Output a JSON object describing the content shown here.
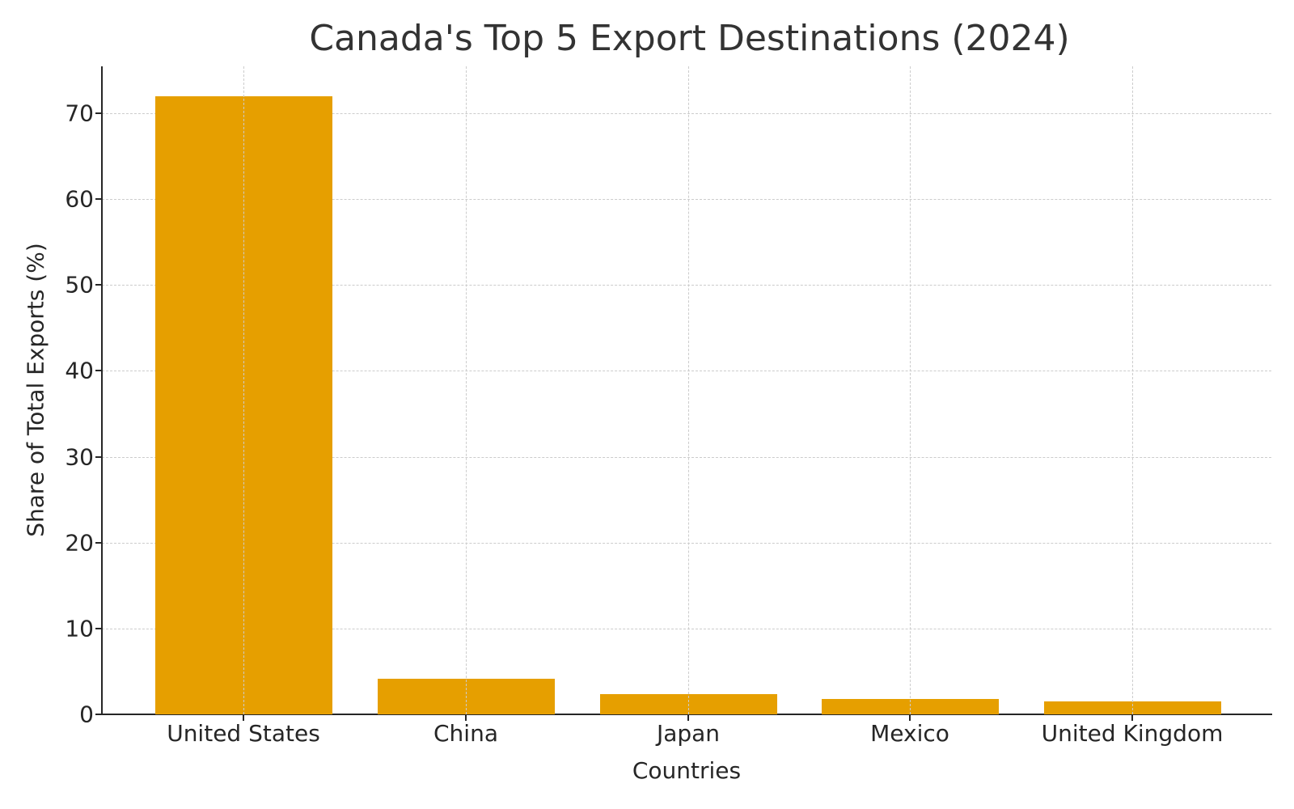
{
  "chart_data": {
    "type": "bar",
    "title": "Canada's Top 5 Export Destinations (2024)",
    "xlabel": "Countries",
    "ylabel": "Share of Total Exports (%)",
    "categories": [
      "United States",
      "China",
      "Japan",
      "Mexico",
      "United Kingdom"
    ],
    "values": [
      72.0,
      4.1,
      2.4,
      1.8,
      1.5
    ],
    "ylim": [
      0,
      75.5
    ],
    "yticks": [
      0,
      10,
      20,
      30,
      40,
      50,
      60,
      70
    ],
    "grid": true,
    "grid_style": "dashed",
    "bar_color": "#e69f00",
    "legend": null
  },
  "labels": {
    "title": "Canada's Top 5 Export Destinations (2024)",
    "xaxis": "Countries",
    "yaxis": "Share of Total Exports (%)",
    "yticks": [
      "0",
      "10",
      "20",
      "30",
      "40",
      "50",
      "60",
      "70"
    ],
    "xticks": [
      "United States",
      "China",
      "Japan",
      "Mexico",
      "United Kingdom"
    ]
  }
}
